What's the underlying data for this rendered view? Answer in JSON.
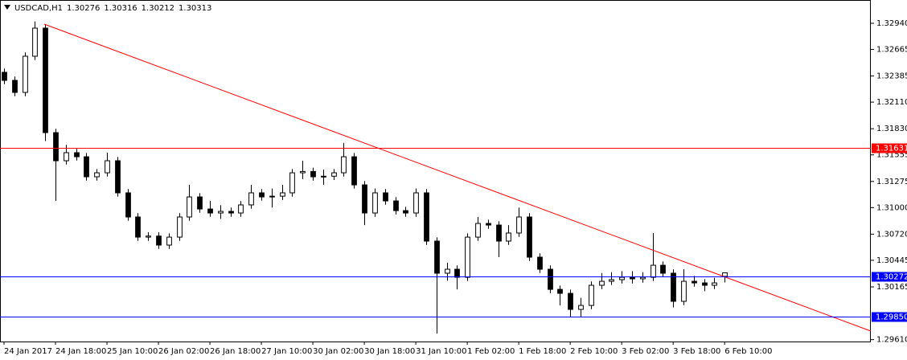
{
  "chart_data": {
    "type": "candlestick",
    "header": {
      "symbol": "USDCAD,H1",
      "open": 1.30276,
      "high": 1.30316,
      "low": 1.30212,
      "close": 1.30313
    },
    "candle_color_up": "#ffffff",
    "candle_color_down": "#000000",
    "xlim": [
      -0.39,
      84.2
    ],
    "ylim": [
      1.2959,
      1.33185
    ],
    "xticks": [
      {
        "value": 0,
        "label": "24 Jan 2017"
      },
      {
        "value": 5,
        "label": "24 Jan 18:00"
      },
      {
        "value": 10,
        "label": "25 Jan 10:00"
      },
      {
        "value": 15,
        "label": "26 Jan 02:00"
      },
      {
        "value": 20,
        "label": "26 Jan 18:00"
      },
      {
        "value": 25,
        "label": "27 Jan 10:00"
      },
      {
        "value": 30,
        "label": "30 Jan 02:00"
      },
      {
        "value": 35,
        "label": "30 Jan 18:00"
      },
      {
        "value": 40,
        "label": "31 Jan 10:00"
      },
      {
        "value": 45,
        "label": "1 Feb 02:00"
      },
      {
        "value": 50,
        "label": "1 Feb 18:00"
      },
      {
        "value": 55,
        "label": "2 Feb 10:00"
      },
      {
        "value": 60,
        "label": "3 Feb 02:00"
      },
      {
        "value": 65,
        "label": "3 Feb 18:00"
      },
      {
        "value": 70,
        "label": "6 Feb 10:00"
      }
    ],
    "yticks": [
      {
        "value": 1.3294,
        "label": "1.32940"
      },
      1.32665,
      1.32385,
      {
        "value": 1.3211,
        "label": "1.32110"
      },
      {
        "value": 1.3183,
        "label": "1.31830"
      },
      1.31555,
      1.31275,
      {
        "value": 1.31,
        "label": "1.31000"
      },
      {
        "value": 1.3072,
        "label": "1.30720"
      },
      1.30445,
      1.30165,
      {
        "value": 1.2961,
        "label": "1.29610"
      }
    ],
    "levels": [
      {
        "value": 1.31631,
        "label": "1.31631",
        "color": "#ff0000"
      },
      {
        "value": 1.30272,
        "label": "1.30272",
        "color": "#0000ff"
      },
      {
        "value": 1.2985,
        "label": "1.29850",
        "color": "#0000ff"
      }
    ],
    "trendline": {
      "x": [
        3.9,
        84.2
      ],
      "y": [
        1.32931,
        1.297
      ],
      "color": "#ff0000"
    },
    "candles": [
      [
        1.32424,
        1.32464,
        1.32299,
        1.32339
      ],
      [
        1.32339,
        1.32379,
        1.32172,
        1.32212
      ],
      [
        1.32212,
        1.32633,
        1.32172,
        1.32593
      ],
      [
        1.32593,
        1.3296,
        1.32553,
        1.32889
      ],
      [
        1.32889,
        1.32929,
        1.317,
        1.31789
      ],
      [
        1.31789,
        1.31829,
        1.3107,
        1.31493
      ],
      [
        1.31493,
        1.3166,
        1.31453,
        1.31578
      ],
      [
        1.31578,
        1.31618,
        1.31495,
        1.31535
      ],
      [
        1.31535,
        1.31575,
        1.31284,
        1.31324
      ],
      [
        1.31324,
        1.31406,
        1.31284,
        1.31366
      ],
      [
        1.31366,
        1.31578,
        1.31326,
        1.31493
      ],
      [
        1.31493,
        1.31533,
        1.31115,
        1.31155
      ],
      [
        1.31155,
        1.31195,
        1.30861,
        1.30901
      ],
      [
        1.30901,
        1.30941,
        1.30649,
        1.30689
      ],
      [
        1.30689,
        1.3074,
        1.30649,
        1.307
      ],
      [
        1.307,
        1.3074,
        1.30565,
        1.30605
      ],
      [
        1.30605,
        1.30729,
        1.30565,
        1.30689
      ],
      [
        1.30689,
        1.30941,
        1.30649,
        1.30901
      ],
      [
        1.30901,
        1.31239,
        1.30861,
        1.31112
      ],
      [
        1.31112,
        1.31152,
        1.30945,
        1.30985
      ],
      [
        1.30985,
        1.3107,
        1.30903,
        1.30943
      ],
      [
        1.30943,
        1.31025,
        1.3088,
        1.3096
      ],
      [
        1.3096,
        1.31,
        1.30903,
        1.30943
      ],
      [
        1.30943,
        1.31068,
        1.30903,
        1.31028
      ],
      [
        1.31028,
        1.31239,
        1.30988,
        1.31155
      ],
      [
        1.31155,
        1.31195,
        1.31072,
        1.31112
      ],
      [
        1.31112,
        1.312,
        1.31,
        1.3112
      ],
      [
        1.3112,
        1.31239,
        1.3108,
        1.31155
      ],
      [
        1.31155,
        1.31406,
        1.31115,
        1.31366
      ],
      [
        1.31366,
        1.31493,
        1.313,
        1.3138
      ],
      [
        1.3138,
        1.3142,
        1.31284,
        1.31324
      ],
      [
        1.31324,
        1.314,
        1.31239,
        1.3133
      ],
      [
        1.3133,
        1.31406,
        1.3129,
        1.31366
      ],
      [
        1.31366,
        1.3168,
        1.31326,
        1.31535
      ],
      [
        1.31535,
        1.31575,
        1.31199,
        1.31239
      ],
      [
        1.31239,
        1.31279,
        1.30816,
        1.30943
      ],
      [
        1.30943,
        1.312,
        1.30903,
        1.31155
      ],
      [
        1.31155,
        1.31195,
        1.3103,
        1.3107
      ],
      [
        1.3107,
        1.3111,
        1.30928,
        1.30968
      ],
      [
        1.30968,
        1.31008,
        1.30903,
        1.30943
      ],
      [
        1.30943,
        1.312,
        1.30903,
        1.31155
      ],
      [
        1.31155,
        1.31195,
        1.30607,
        1.30647
      ],
      [
        1.30647,
        1.30687,
        1.29674,
        1.30309
      ],
      [
        1.30309,
        1.3042,
        1.3023,
        1.30351
      ],
      [
        1.30351,
        1.30391,
        1.30139,
        1.30266
      ],
      [
        1.30266,
        1.30729,
        1.30226,
        1.30689
      ],
      [
        1.30689,
        1.30901,
        1.30649,
        1.30833
      ],
      [
        1.30833,
        1.30873,
        1.30776,
        1.30816
      ],
      [
        1.30816,
        1.30856,
        1.30478,
        1.30647
      ],
      [
        1.30647,
        1.30816,
        1.30607,
        1.30732
      ],
      [
        1.30732,
        1.31,
        1.30692,
        1.30901
      ],
      [
        1.30901,
        1.30941,
        1.30438,
        1.30478
      ],
      [
        1.30478,
        1.30518,
        1.30311,
        1.30351
      ],
      [
        1.30351,
        1.30391,
        1.30099,
        1.30139
      ],
      [
        1.30139,
        1.30179,
        1.2997,
        1.30097
      ],
      [
        1.30097,
        1.30137,
        1.2985,
        1.29928
      ],
      [
        1.29928,
        1.3005,
        1.2985,
        1.2997
      ],
      [
        1.2997,
        1.30222,
        1.2993,
        1.30182
      ],
      [
        1.30182,
        1.30311,
        1.30142,
        1.30224
      ],
      [
        1.30224,
        1.3032,
        1.30184,
        1.30241
      ],
      [
        1.30241,
        1.3033,
        1.302,
        1.30266
      ],
      [
        1.30266,
        1.3033,
        1.302,
        1.3025
      ],
      [
        1.3025,
        1.3032,
        1.3021,
        1.30266
      ],
      [
        1.30266,
        1.30732,
        1.30226,
        1.30393
      ],
      [
        1.30393,
        1.30433,
        1.30269,
        1.30309
      ],
      [
        1.30309,
        1.30349,
        1.2995,
        1.30013
      ],
      [
        1.30013,
        1.30351,
        1.29973,
        1.30224
      ],
      [
        1.30224,
        1.3028,
        1.30167,
        1.30207
      ],
      [
        1.30207,
        1.30247,
        1.3012,
        1.30182
      ],
      [
        1.30182,
        1.3026,
        1.30142,
        1.30207
      ],
      [
        1.30276,
        1.30316,
        1.30212,
        1.30313
      ]
    ]
  }
}
